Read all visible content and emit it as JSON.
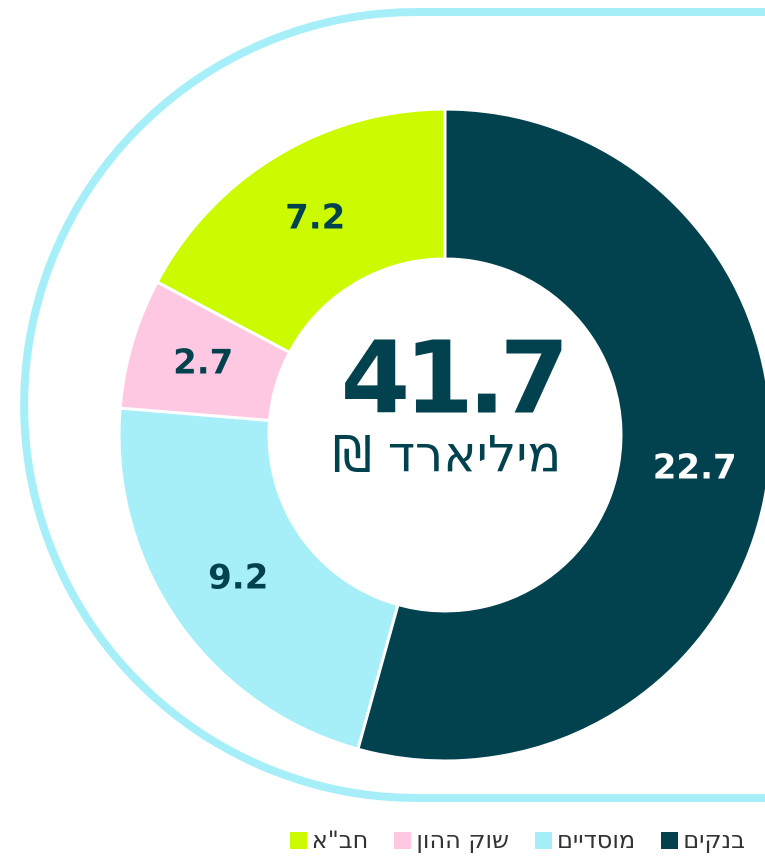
{
  "chart_data": {
    "type": "donut",
    "categories": [
      "בנקים",
      "מוסדיים",
      "שוק ההון",
      "חב\"א"
    ],
    "values": [
      22.7,
      9.2,
      2.7,
      7.2
    ],
    "colors": [
      "#02424f",
      "#a6eff9",
      "#ffc8e2",
      "#ccfa00"
    ],
    "total": 41.7,
    "center_label": "מיליארד ₪"
  }
}
